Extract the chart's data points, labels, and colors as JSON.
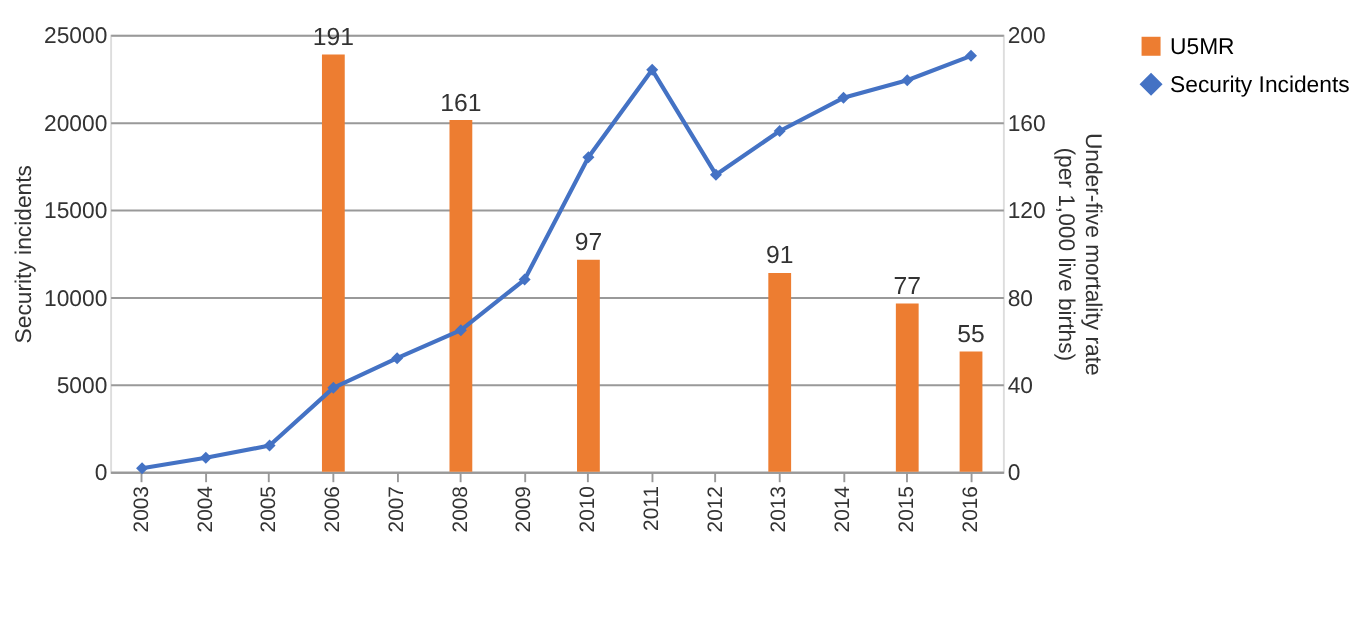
{
  "chart_data": {
    "type": "bar",
    "categories": [
      "2003",
      "2004",
      "2005",
      "2006",
      "2007",
      "2008",
      "2009",
      "2010",
      "2011",
      "2012",
      "2013",
      "2014",
      "2015",
      "2016"
    ],
    "series": [
      {
        "name": "U5MR",
        "axis": "y2",
        "color": "#ed7d31",
        "data_labels": true,
        "values": [
          null,
          null,
          null,
          191,
          null,
          161,
          null,
          97,
          null,
          null,
          91,
          null,
          77,
          55
        ]
      },
      {
        "name": "Security Incidents",
        "type": "line",
        "axis": "y",
        "color": "#4472c4",
        "marker": "diamond",
        "values": [
          200,
          800,
          1500,
          4800,
          6500,
          8100,
          11000,
          18000,
          23000,
          17000,
          19500,
          21400,
          22400,
          23800
        ]
      }
    ],
    "ylabel": "Security incidents",
    "y2label": "Under-five mortality rate\n(per 1,000 live births)",
    "ylim": [
      0,
      25000
    ],
    "yticks": [
      0,
      5000,
      10000,
      15000,
      20000,
      25000
    ],
    "y2lim": [
      0,
      200
    ],
    "y2ticks": [
      0,
      40,
      80,
      120,
      160,
      200
    ],
    "grid": "y",
    "legend": "right"
  }
}
